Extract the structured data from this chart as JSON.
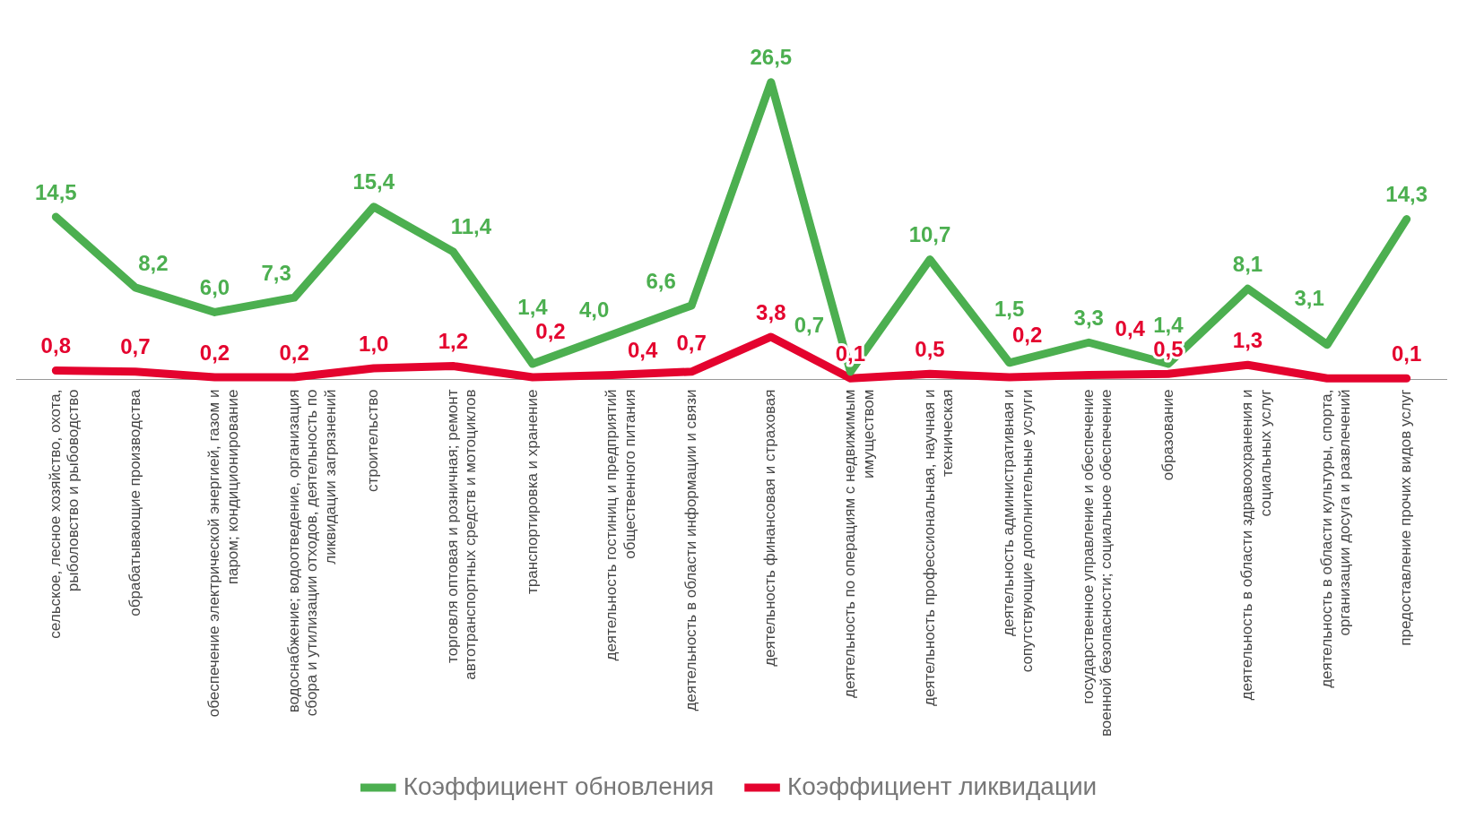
{
  "chart_data": {
    "type": "line",
    "categories": [
      "сельское, лесное хозяйство, охота, рыболовство и рыбоводство",
      "обрабатывающие производства",
      "обеспечение электрической энергией, газом и паром; кондиционирование",
      "водоснабжение; водоотведение, организация сбора и утилизации отходов, деятельность по ликвидации загрязнений",
      "строительство",
      "торговля оптовая и розничная; ремонт автотранспортных средств и мотоциклов",
      "транспортировка и хранение",
      "деятельность гостиниц и предприятий общественного питания",
      "деятельность в области информации и связи",
      "деятельность финансовая и страховая",
      "деятельность по операциям с недвижимым имуществом",
      "деятельность профессиональная, научная и техническая",
      "деятельность административная и сопутствующие дополнительные услуги",
      "государственное управление и обеспечение военной безопасности; социальное обеспечение",
      "образование",
      "деятельность в области здравоохранения и социальных услуг",
      "деятельность в области культуры, спорта, организации досуга и развлечений",
      "предоставление прочих видов услуг"
    ],
    "series": [
      {
        "name": "Коэффициент обновления",
        "color": "#4caf50",
        "values": [
          14.5,
          8.2,
          6.0,
          7.3,
          15.4,
          11.4,
          1.4,
          4.0,
          6.6,
          26.5,
          0.7,
          10.7,
          1.5,
          3.3,
          1.4,
          8.1,
          3.1,
          14.3
        ],
        "value_labels": [
          "14,5",
          "8,2",
          "6,0",
          "7,3",
          "15,4",
          "11,4",
          "1,4",
          "4,0",
          "6,6",
          "26,5",
          "0,7",
          "10,7",
          "1,5",
          "3,3",
          "1,4",
          "8,1",
          "3,1",
          "14,3"
        ]
      },
      {
        "name": "Коэффициент ликвидации",
        "color": "#e4032e",
        "values": [
          0.8,
          0.7,
          0.2,
          0.2,
          1.0,
          1.2,
          0.2,
          0.4,
          0.7,
          3.8,
          0.1,
          0.5,
          0.2,
          0.4,
          0.5,
          1.3,
          0.1,
          0.1
        ],
        "value_labels": [
          "0,8",
          "0,7",
          "0,2",
          "0,2",
          "1,0",
          "1,2",
          "0,2",
          "0,4",
          "0,7",
          "3,8",
          "0,1",
          "0,5",
          "0,2",
          "0,4",
          "0,5",
          "1,3",
          null,
          "0,1"
        ]
      }
    ],
    "tick_labels": "x",
    "grid": false,
    "legend": "bottom",
    "marker": "none",
    "line_style": "solid"
  }
}
